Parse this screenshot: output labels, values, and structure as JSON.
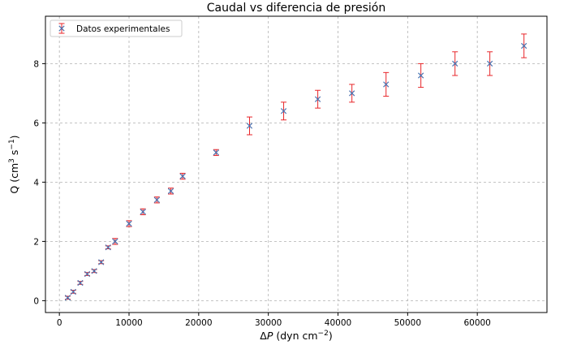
{
  "chart_data": {
    "type": "scatter",
    "title": "Caudal vs diferencia de presión",
    "xlabel": {
      "prefix": "Δ",
      "var": "P",
      "unit_pre": " (dyn cm",
      "unit_sup": "−2",
      "unit_post": ")"
    },
    "ylabel": {
      "pre": "Q (cm",
      "sup1": "3",
      "mid": " s",
      "sup2": "−1",
      "post": ")"
    },
    "xlim": [
      -2000,
      70000
    ],
    "ylim": [
      -0.4,
      9.6
    ],
    "xticks": [
      0,
      10000,
      20000,
      30000,
      40000,
      50000,
      60000
    ],
    "yticks": [
      0,
      2,
      4,
      6,
      8
    ],
    "grid": true,
    "legend_position": "top-left",
    "series": [
      {
        "name": "Datos experimentales",
        "marker": "x",
        "marker_color": "#4c72b0",
        "errorbar_color": "#e8262a",
        "x": [
          1200,
          2000,
          3000,
          4000,
          5000,
          6000,
          7000,
          8000,
          10000,
          12000,
          14000,
          16000,
          17700,
          22500,
          27300,
          32200,
          37100,
          42000,
          46900,
          51900,
          56800,
          61800,
          66700
        ],
        "y": [
          0.1,
          0.3,
          0.6,
          0.9,
          1.0,
          1.3,
          1.8,
          2.0,
          2.6,
          3.0,
          3.4,
          3.7,
          4.2,
          5.0,
          5.9,
          6.4,
          6.8,
          7.0,
          7.3,
          7.6,
          8.0,
          8.0,
          8.6
        ],
        "yerr": [
          0.05,
          0.05,
          0.05,
          0.05,
          0.05,
          0.05,
          0.05,
          0.1,
          0.1,
          0.1,
          0.1,
          0.1,
          0.1,
          0.1,
          0.3,
          0.3,
          0.3,
          0.3,
          0.4,
          0.4,
          0.4,
          0.4,
          0.4
        ]
      }
    ]
  }
}
